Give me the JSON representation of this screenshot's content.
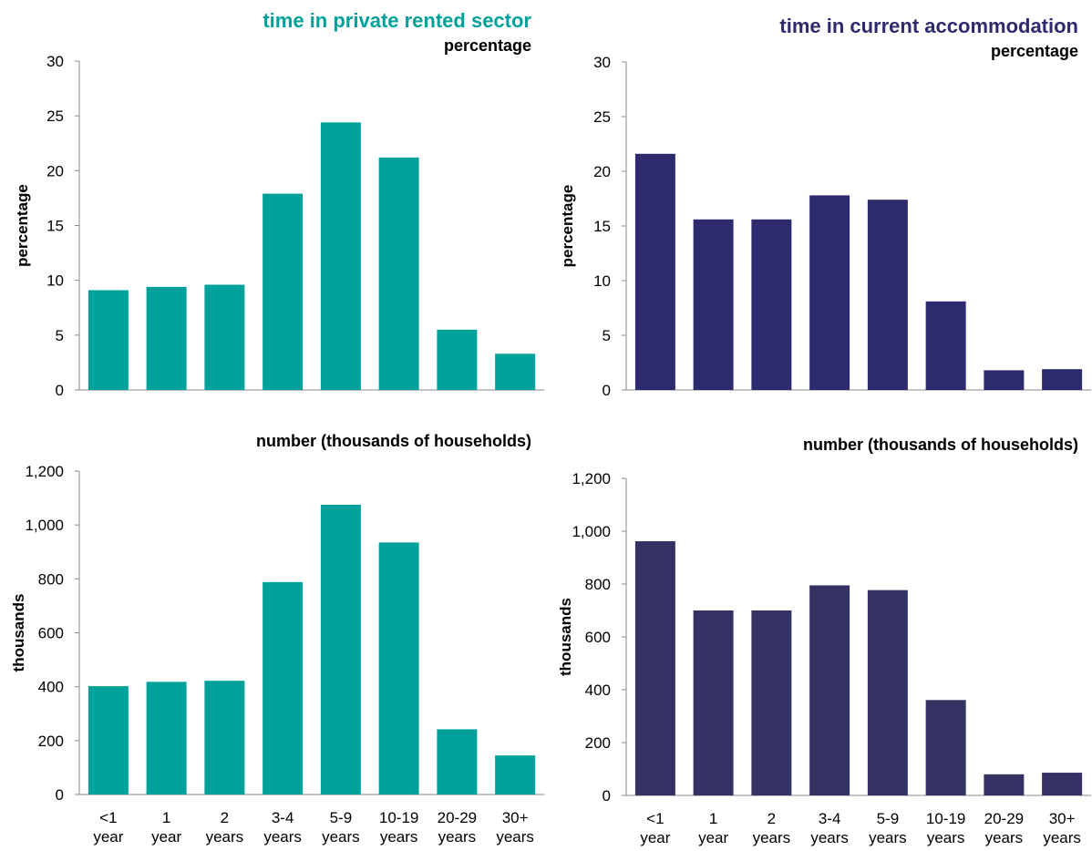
{
  "colors": {
    "private": "#00a19a",
    "current": "#2d2a6e",
    "current_number": "#333263"
  },
  "headings": {
    "left": "time in private rented sector",
    "right": "time in current accommodation"
  },
  "chart_data": [
    {
      "type": "bar",
      "id": "prs-percentage",
      "title": "percentage",
      "ylabel": "percentage",
      "xlabel": "",
      "ylim": [
        0,
        30
      ],
      "yticks": [
        0,
        5,
        10,
        15,
        20,
        25,
        30
      ],
      "ytick_labels": [
        "0",
        "5",
        "10",
        "15",
        "20",
        "25",
        "30"
      ],
      "categories": [
        "<1 year",
        "1 year",
        "2 years",
        "3-4 years",
        "5-9 years",
        "10-19 years",
        "20-29 years",
        "30+ years"
      ],
      "values": [
        9.1,
        9.4,
        9.6,
        17.9,
        24.4,
        21.2,
        5.5,
        3.3
      ],
      "color": "#00a19a",
      "show_xlabels": false
    },
    {
      "type": "bar",
      "id": "cur-percentage",
      "title": "percentage",
      "ylabel": "percentage",
      "xlabel": "",
      "ylim": [
        0,
        30
      ],
      "yticks": [
        0,
        5,
        10,
        15,
        20,
        25,
        30
      ],
      "ytick_labels": [
        "0",
        "5",
        "10",
        "15",
        "20",
        "25",
        "30"
      ],
      "categories": [
        "<1 year",
        "1 year",
        "2 years",
        "3-4 years",
        "5-9 years",
        "10-19 years",
        "20-29 years",
        "30+ years"
      ],
      "values": [
        21.6,
        15.6,
        15.6,
        17.8,
        17.4,
        8.1,
        1.8,
        1.9
      ],
      "color": "#2d2a6e",
      "show_xlabels": false
    },
    {
      "type": "bar",
      "id": "prs-number",
      "title": "number (thousands of households)",
      "ylabel": "thousands",
      "xlabel": "",
      "ylim": [
        0,
        1200
      ],
      "yticks": [
        0,
        200,
        400,
        600,
        800,
        1000,
        1200
      ],
      "ytick_labels": [
        "0",
        "200",
        "400",
        "600",
        "800",
        "1,000",
        "1,200"
      ],
      "categories": [
        "<1 year",
        "1 year",
        "2 years",
        "3-4 years",
        "5-9 years",
        "10-19 years",
        "20-29 years",
        "30+ years"
      ],
      "category_lines": [
        [
          "<1",
          "year"
        ],
        [
          "1",
          "year"
        ],
        [
          "2",
          "years"
        ],
        [
          "3-4",
          "years"
        ],
        [
          "5-9",
          "years"
        ],
        [
          "10-19",
          "years"
        ],
        [
          "20-29",
          "years"
        ],
        [
          "30+",
          "years"
        ]
      ],
      "values": [
        402,
        418,
        422,
        788,
        1075,
        935,
        242,
        145
      ],
      "color": "#00a19a",
      "show_xlabels": true
    },
    {
      "type": "bar",
      "id": "cur-number",
      "title": "number (thousands of households)",
      "ylabel": "thousands",
      "xlabel": "",
      "ylim": [
        0,
        1200
      ],
      "yticks": [
        0,
        200,
        400,
        600,
        800,
        1000,
        1200
      ],
      "ytick_labels": [
        "0",
        "200",
        "400",
        "600",
        "800",
        "1,000",
        "1,200"
      ],
      "categories": [
        "<1 year",
        "1 year",
        "2 years",
        "3-4 years",
        "5-9 years",
        "10-19 years",
        "20-29 years",
        "30+ years"
      ],
      "category_lines": [
        [
          "<1",
          "year"
        ],
        [
          "1",
          "year"
        ],
        [
          "2",
          "years"
        ],
        [
          "3-4",
          "years"
        ],
        [
          "5-9",
          "years"
        ],
        [
          "10-19",
          "years"
        ],
        [
          "20-29",
          "years"
        ],
        [
          "30+",
          "years"
        ]
      ],
      "values": [
        962,
        700,
        700,
        795,
        777,
        361,
        80,
        86
      ],
      "color": "#333263",
      "show_xlabels": true
    }
  ]
}
